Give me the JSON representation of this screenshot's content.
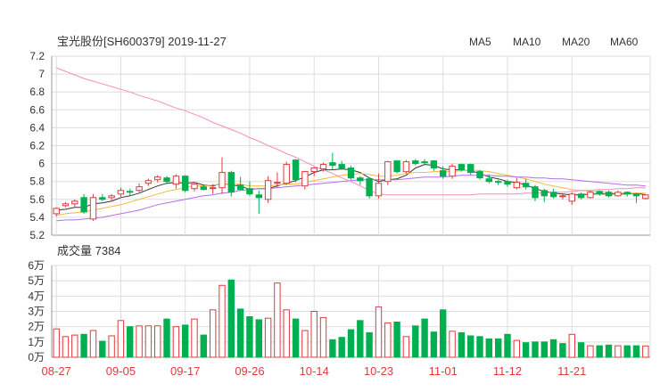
{
  "title": "宝光股份[SH600379] 2019-11-27",
  "legend": [
    {
      "label": "MA5",
      "color": "#333333"
    },
    {
      "label": "MA10",
      "color": "#f5b940"
    },
    {
      "label": "MA20",
      "color": "#b46ee6"
    },
    {
      "label": "MA60",
      "color": "#f28cc1"
    }
  ],
  "volume_label": "成交量 7384",
  "colors": {
    "up": "#e0393e",
    "down": "#00b050",
    "grid": "#dddddd",
    "axis": "#999999"
  },
  "chart_data": [
    {
      "type": "candlestick",
      "title": "宝光股份[SH600379] 2019-11-27",
      "ylim": [
        5.2,
        7.2
      ],
      "y_ticks": [
        "7.2",
        "7",
        "6.8",
        "6.6",
        "6.4",
        "6.2",
        "6",
        "5.8",
        "5.6",
        "5.4",
        "5.2"
      ],
      "x_tick_labels": [
        "08-27",
        "09-05",
        "09-17",
        "09-26",
        "10-14",
        "10-23",
        "11-01",
        "11-12",
        "11-21"
      ],
      "x_tick_indices": [
        0,
        7,
        14,
        21,
        28,
        35,
        42,
        49,
        56
      ],
      "candles": [
        {
          "o": 5.44,
          "h": 5.51,
          "l": 5.41,
          "c": 5.5
        },
        {
          "o": 5.53,
          "h": 5.57,
          "l": 5.51,
          "c": 5.55
        },
        {
          "o": 5.55,
          "h": 5.6,
          "l": 5.52,
          "c": 5.58
        },
        {
          "o": 5.62,
          "h": 5.66,
          "l": 5.44,
          "c": 5.46
        },
        {
          "o": 5.38,
          "h": 5.66,
          "l": 5.36,
          "c": 5.62
        },
        {
          "o": 5.62,
          "h": 5.66,
          "l": 5.58,
          "c": 5.6
        },
        {
          "o": 5.62,
          "h": 5.66,
          "l": 5.59,
          "c": 5.64
        },
        {
          "o": 5.66,
          "h": 5.73,
          "l": 5.63,
          "c": 5.7
        },
        {
          "o": 5.69,
          "h": 5.72,
          "l": 5.64,
          "c": 5.68
        },
        {
          "o": 5.7,
          "h": 5.78,
          "l": 5.68,
          "c": 5.74
        },
        {
          "o": 5.78,
          "h": 5.83,
          "l": 5.75,
          "c": 5.81
        },
        {
          "o": 5.82,
          "h": 5.87,
          "l": 5.79,
          "c": 5.85
        },
        {
          "o": 5.84,
          "h": 5.86,
          "l": 5.77,
          "c": 5.8
        },
        {
          "o": 5.77,
          "h": 5.88,
          "l": 5.72,
          "c": 5.86
        },
        {
          "o": 5.86,
          "h": 5.87,
          "l": 5.68,
          "c": 5.7
        },
        {
          "o": 5.72,
          "h": 5.78,
          "l": 5.69,
          "c": 5.77
        },
        {
          "o": 5.74,
          "h": 5.76,
          "l": 5.7,
          "c": 5.71
        },
        {
          "o": 5.72,
          "h": 5.77,
          "l": 5.66,
          "c": 5.73
        },
        {
          "o": 5.73,
          "h": 6.07,
          "l": 5.66,
          "c": 5.9
        },
        {
          "o": 5.9,
          "h": 5.92,
          "l": 5.63,
          "c": 5.68
        },
        {
          "o": 5.76,
          "h": 5.85,
          "l": 5.7,
          "c": 5.71
        },
        {
          "o": 5.72,
          "h": 5.8,
          "l": 5.64,
          "c": 5.66
        },
        {
          "o": 5.65,
          "h": 5.7,
          "l": 5.44,
          "c": 5.62
        },
        {
          "o": 5.6,
          "h": 5.86,
          "l": 5.56,
          "c": 5.81
        },
        {
          "o": 5.78,
          "h": 5.9,
          "l": 5.73,
          "c": 5.79
        },
        {
          "o": 5.78,
          "h": 6.02,
          "l": 5.76,
          "c": 5.99
        },
        {
          "o": 6.04,
          "h": 6.05,
          "l": 5.79,
          "c": 5.82
        },
        {
          "o": 5.75,
          "h": 5.92,
          "l": 5.71,
          "c": 5.91
        },
        {
          "o": 5.91,
          "h": 5.96,
          "l": 5.86,
          "c": 5.95
        },
        {
          "o": 5.94,
          "h": 6.01,
          "l": 5.91,
          "c": 5.99
        },
        {
          "o": 6.01,
          "h": 6.12,
          "l": 5.93,
          "c": 5.98
        },
        {
          "o": 5.99,
          "h": 6.03,
          "l": 5.93,
          "c": 5.95
        },
        {
          "o": 5.95,
          "h": 5.98,
          "l": 5.82,
          "c": 5.84
        },
        {
          "o": 5.84,
          "h": 5.86,
          "l": 5.76,
          "c": 5.81
        },
        {
          "o": 5.83,
          "h": 5.84,
          "l": 5.61,
          "c": 5.64
        },
        {
          "o": 5.64,
          "h": 5.89,
          "l": 5.61,
          "c": 5.78
        },
        {
          "o": 5.8,
          "h": 6.03,
          "l": 5.76,
          "c": 6.02
        },
        {
          "o": 6.03,
          "h": 6.04,
          "l": 5.89,
          "c": 5.91
        },
        {
          "o": 5.91,
          "h": 6.04,
          "l": 5.89,
          "c": 6.02
        },
        {
          "o": 6.03,
          "h": 6.05,
          "l": 5.98,
          "c": 6.0
        },
        {
          "o": 6.02,
          "h": 6.05,
          "l": 5.99,
          "c": 6.01
        },
        {
          "o": 6.03,
          "h": 6.04,
          "l": 5.92,
          "c": 5.95
        },
        {
          "o": 5.92,
          "h": 5.97,
          "l": 5.83,
          "c": 5.86
        },
        {
          "o": 5.86,
          "h": 6.0,
          "l": 5.83,
          "c": 5.97
        },
        {
          "o": 5.99,
          "h": 6.0,
          "l": 5.91,
          "c": 5.93
        },
        {
          "o": 5.99,
          "h": 6.0,
          "l": 5.87,
          "c": 5.9
        },
        {
          "o": 5.91,
          "h": 5.93,
          "l": 5.82,
          "c": 5.84
        },
        {
          "o": 5.83,
          "h": 5.88,
          "l": 5.78,
          "c": 5.8
        },
        {
          "o": 5.8,
          "h": 5.82,
          "l": 5.76,
          "c": 5.79
        },
        {
          "o": 5.8,
          "h": 5.82,
          "l": 5.74,
          "c": 5.77
        },
        {
          "o": 5.73,
          "h": 5.84,
          "l": 5.71,
          "c": 5.79
        },
        {
          "o": 5.78,
          "h": 5.83,
          "l": 5.71,
          "c": 5.74
        },
        {
          "o": 5.74,
          "h": 5.76,
          "l": 5.58,
          "c": 5.62
        },
        {
          "o": 5.7,
          "h": 5.72,
          "l": 5.57,
          "c": 5.64
        },
        {
          "o": 5.68,
          "h": 5.72,
          "l": 5.61,
          "c": 5.63
        },
        {
          "o": 5.63,
          "h": 5.66,
          "l": 5.6,
          "c": 5.64
        },
        {
          "o": 5.58,
          "h": 5.68,
          "l": 5.54,
          "c": 5.66
        },
        {
          "o": 5.66,
          "h": 5.68,
          "l": 5.6,
          "c": 5.62
        },
        {
          "o": 5.62,
          "h": 5.7,
          "l": 5.61,
          "c": 5.68
        },
        {
          "o": 5.69,
          "h": 5.7,
          "l": 5.64,
          "c": 5.66
        },
        {
          "o": 5.68,
          "h": 5.7,
          "l": 5.62,
          "c": 5.64
        },
        {
          "o": 5.64,
          "h": 5.7,
          "l": 5.63,
          "c": 5.68
        },
        {
          "o": 5.68,
          "h": 5.69,
          "l": 5.63,
          "c": 5.66
        },
        {
          "o": 5.66,
          "h": 5.67,
          "l": 5.56,
          "c": 5.64
        },
        {
          "o": 5.61,
          "h": 5.66,
          "l": 5.6,
          "c": 5.65
        }
      ],
      "ma": {
        "MA5": [
          5.48,
          5.49,
          5.51,
          5.51,
          5.55,
          5.56,
          5.58,
          5.62,
          5.64,
          5.67,
          5.71,
          5.75,
          5.78,
          5.79,
          5.78,
          5.79,
          5.76,
          5.75,
          5.78,
          5.76,
          5.75,
          5.71,
          5.72,
          5.72,
          5.75,
          5.78,
          5.81,
          5.85,
          5.9,
          5.93,
          5.93,
          5.94,
          5.93,
          5.9,
          5.84,
          5.8,
          5.82,
          5.83,
          5.87,
          5.95,
          5.99,
          5.98,
          5.94,
          5.93,
          5.93,
          5.92,
          5.89,
          5.85,
          5.83,
          5.8,
          5.79,
          5.76,
          5.72,
          5.69,
          5.67,
          5.66,
          5.65,
          5.65,
          5.66,
          5.66,
          5.66,
          5.66,
          5.66,
          5.67,
          5.65
        ],
        "MA10": [
          5.42,
          5.44,
          5.45,
          5.46,
          5.48,
          5.5,
          5.52,
          5.54,
          5.57,
          5.6,
          5.63,
          5.66,
          5.69,
          5.71,
          5.73,
          5.75,
          5.75,
          5.76,
          5.77,
          5.77,
          5.77,
          5.75,
          5.75,
          5.75,
          5.76,
          5.77,
          5.77,
          5.79,
          5.81,
          5.83,
          5.85,
          5.87,
          5.88,
          5.89,
          5.88,
          5.86,
          5.86,
          5.87,
          5.89,
          5.9,
          5.9,
          5.91,
          5.91,
          5.91,
          5.92,
          5.93,
          5.92,
          5.91,
          5.89,
          5.87,
          5.85,
          5.83,
          5.8,
          5.77,
          5.75,
          5.73,
          5.71,
          5.7,
          5.69,
          5.68,
          5.68,
          5.67,
          5.67,
          5.67,
          5.67
        ],
        "MA20": [
          5.36,
          5.37,
          5.37,
          5.38,
          5.39,
          5.4,
          5.42,
          5.44,
          5.46,
          5.48,
          5.51,
          5.54,
          5.56,
          5.58,
          5.6,
          5.62,
          5.64,
          5.65,
          5.67,
          5.68,
          5.7,
          5.71,
          5.72,
          5.72,
          5.73,
          5.74,
          5.75,
          5.76,
          5.77,
          5.78,
          5.79,
          5.8,
          5.81,
          5.82,
          5.82,
          5.82,
          5.82,
          5.82,
          5.83,
          5.84,
          5.85,
          5.85,
          5.85,
          5.86,
          5.87,
          5.87,
          5.87,
          5.87,
          5.86,
          5.86,
          5.85,
          5.85,
          5.84,
          5.84,
          5.83,
          5.83,
          5.82,
          5.81,
          5.8,
          5.79,
          5.78,
          5.77,
          5.76,
          5.76,
          5.75
        ],
        "MA60": [
          7.07,
          7.03,
          6.99,
          6.95,
          6.92,
          6.89,
          6.86,
          6.83,
          6.8,
          6.76,
          6.73,
          6.7,
          6.66,
          6.62,
          6.59,
          6.55,
          6.51,
          6.46,
          6.42,
          6.38,
          6.34,
          6.29,
          6.25,
          6.2,
          6.16,
          6.11,
          6.07,
          6.02,
          5.97,
          5.93,
          5.89,
          5.84,
          5.8,
          5.75,
          5.7,
          5.66,
          5.65,
          5.65,
          5.65,
          5.65,
          5.65,
          5.65,
          5.65,
          5.65,
          5.65,
          5.65,
          5.66,
          5.66,
          5.66,
          5.66,
          5.66,
          5.67,
          5.67,
          5.67,
          5.68,
          5.68,
          5.69,
          5.7,
          5.7,
          5.71,
          5.71,
          5.72,
          5.72,
          5.73,
          5.73
        ]
      }
    },
    {
      "type": "bar",
      "title": "成交量 7384",
      "ylim": [
        0,
        60000
      ],
      "y_ticks": [
        "6万",
        "5万",
        "4万",
        "3万",
        "2万",
        "1万",
        "0万"
      ],
      "values": [
        18500,
        13500,
        14500,
        15000,
        17500,
        10500,
        14000,
        24000,
        20000,
        20500,
        20500,
        20500,
        25000,
        20000,
        21000,
        25000,
        14500,
        31000,
        47000,
        50500,
        31500,
        26500,
        24500,
        25500,
        48500,
        31000,
        25000,
        17500,
        30000,
        26000,
        11500,
        13000,
        18000,
        24000,
        16000,
        33000,
        22500,
        23000,
        13500,
        20500,
        25000,
        16500,
        31000,
        17000,
        16000,
        14000,
        13500,
        12000,
        12000,
        15000,
        11000,
        9500,
        10000,
        10000,
        11500,
        9000,
        15000,
        9500,
        7500,
        7500,
        8000,
        7500,
        7500,
        7500,
        7384
      ],
      "up": [
        true,
        true,
        true,
        false,
        true,
        false,
        true,
        true,
        false,
        true,
        true,
        true,
        false,
        true,
        false,
        true,
        false,
        true,
        true,
        false,
        false,
        false,
        false,
        true,
        true,
        true,
        false,
        true,
        true,
        true,
        false,
        false,
        false,
        false,
        false,
        true,
        true,
        false,
        true,
        false,
        false,
        false,
        false,
        true,
        false,
        false,
        false,
        false,
        false,
        false,
        true,
        false,
        false,
        false,
        false,
        false,
        true,
        false,
        true,
        false,
        false,
        true,
        false,
        false,
        true
      ]
    }
  ]
}
